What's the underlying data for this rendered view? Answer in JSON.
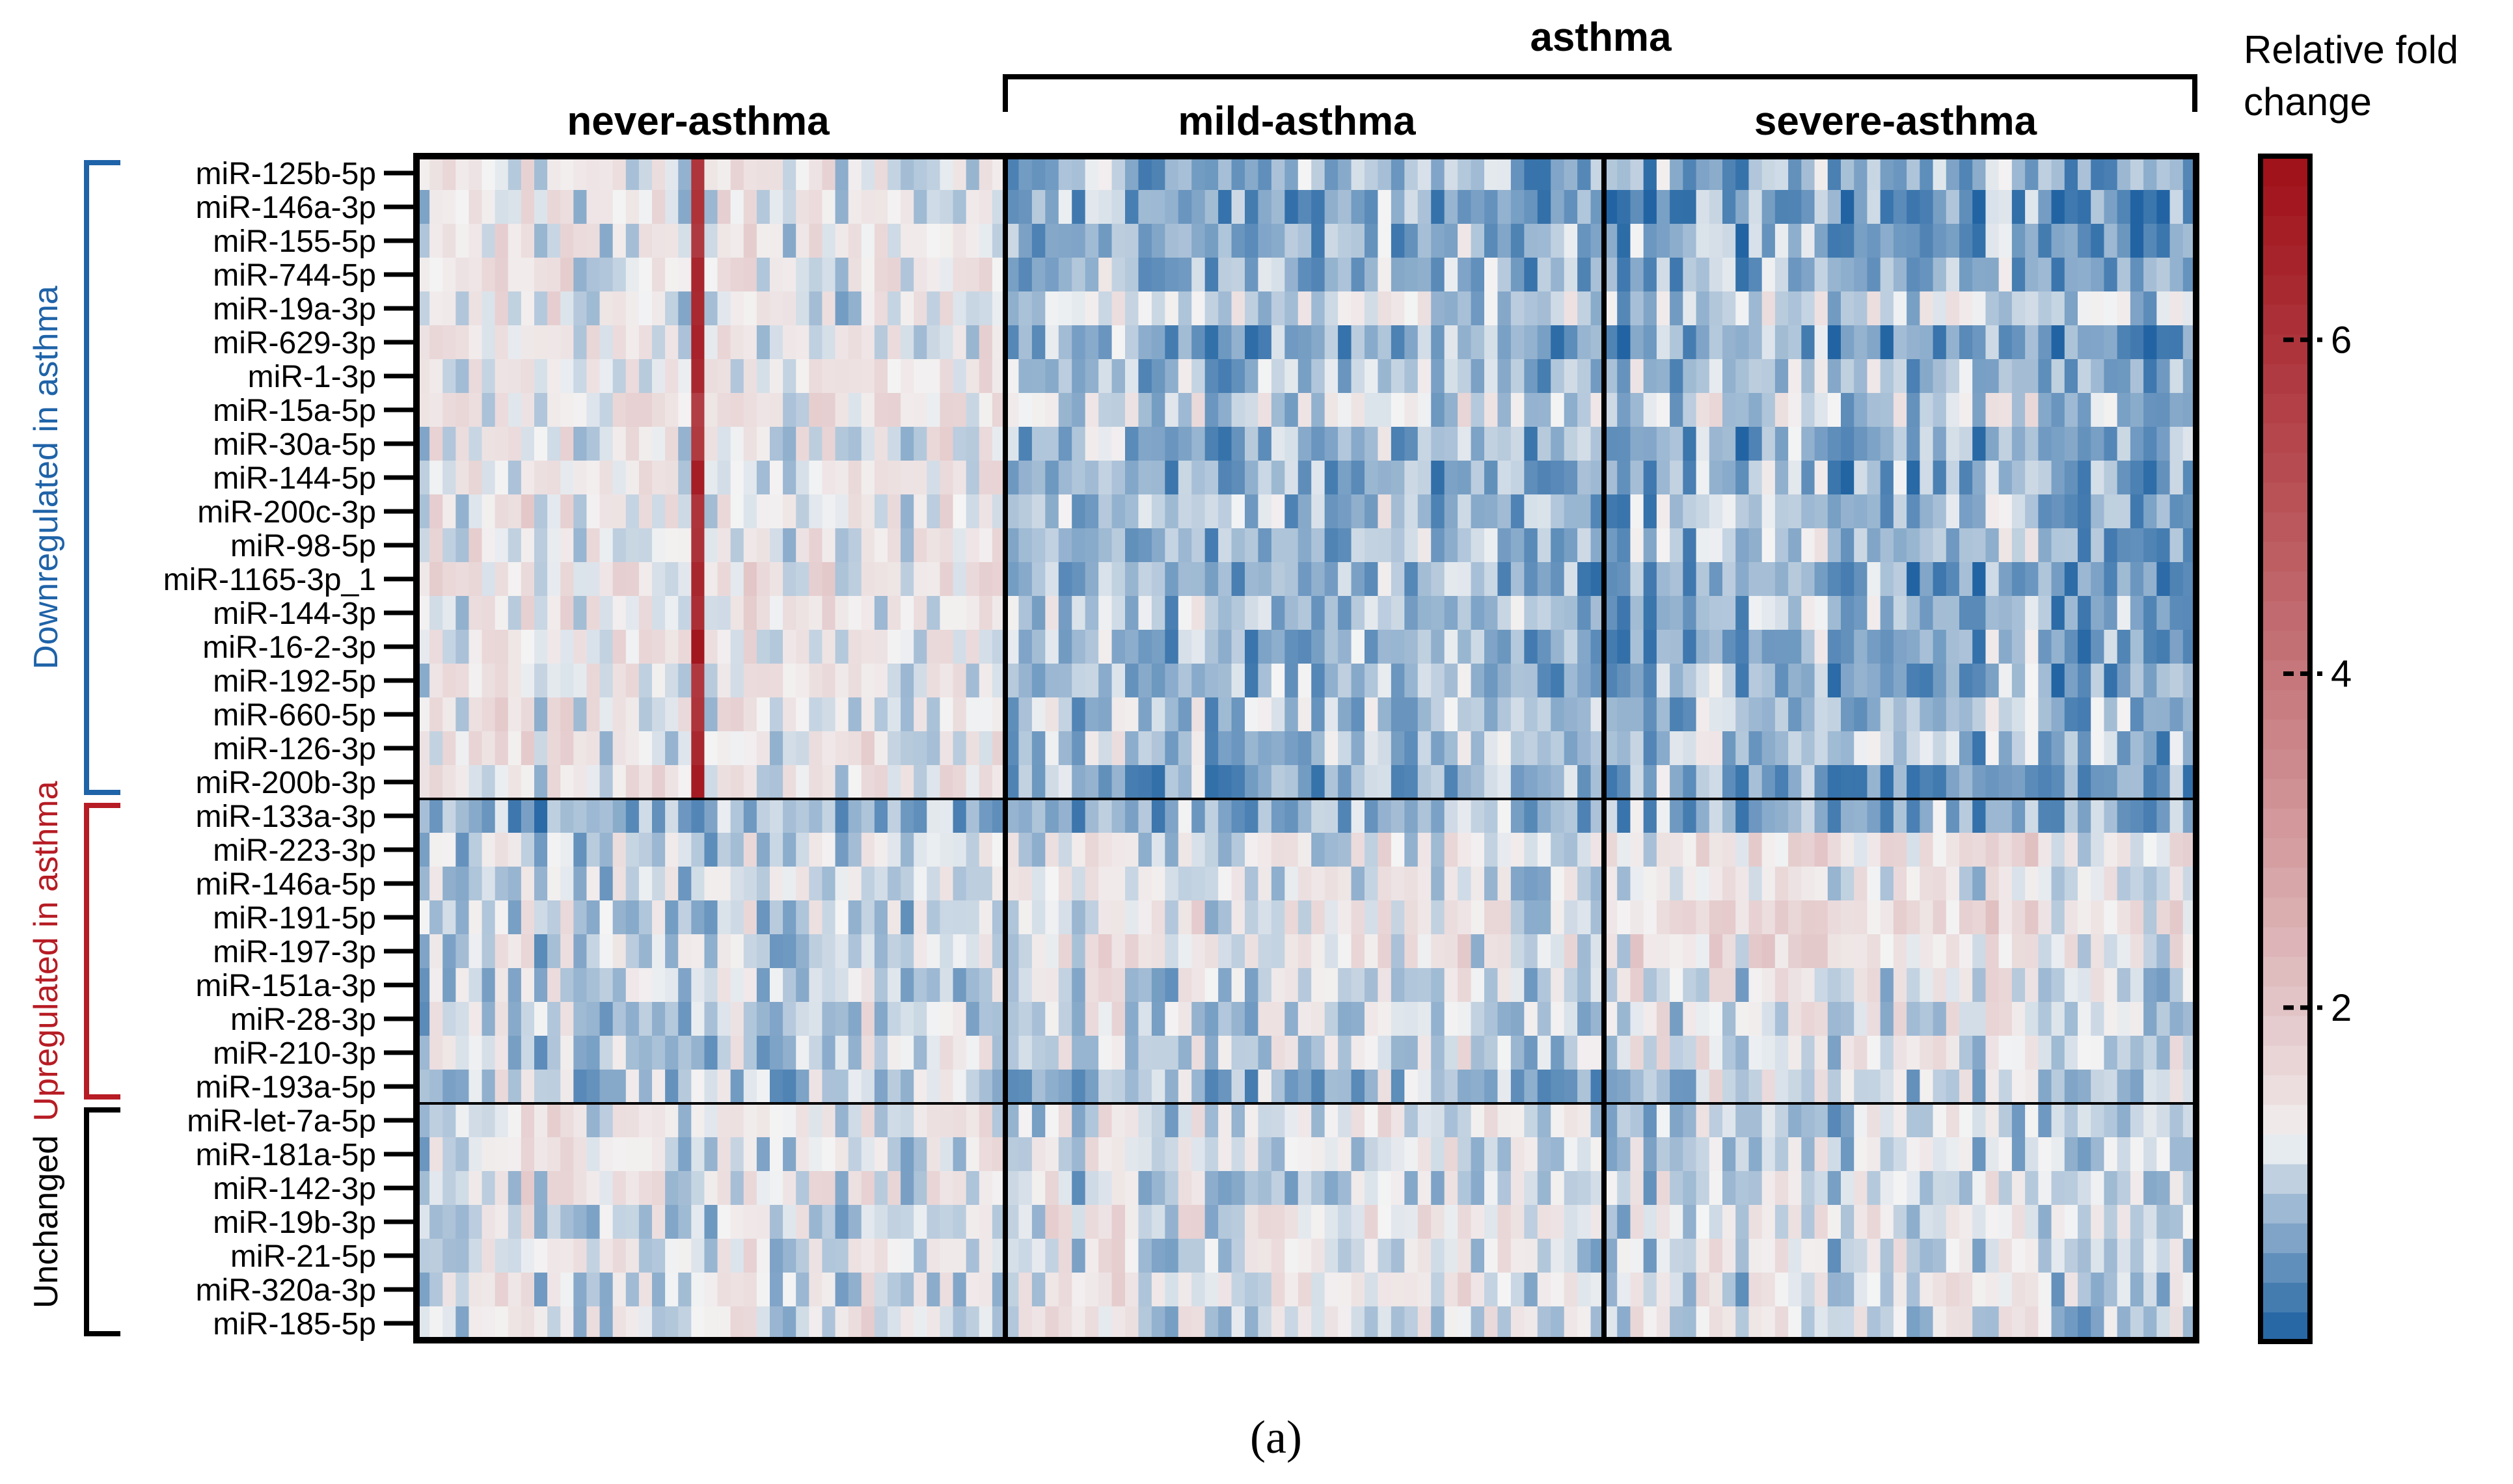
{
  "chart_data": {
    "type": "heatmap",
    "title": "",
    "caption": "(a)",
    "supergroup_label": "asthma",
    "groups": [
      {
        "name": "never-asthma",
        "columns": 45
      },
      {
        "name": "mild-asthma",
        "columns": 45
      },
      {
        "name": "severe-asthma",
        "columns": 45
      }
    ],
    "row_groups": [
      {
        "name": "Downregulated in asthma",
        "color": "#1f63a8",
        "rows": 19
      },
      {
        "name": "Upregulated in asthma",
        "color": "#b71c24",
        "rows": 9
      },
      {
        "name": "Unchanged",
        "color": "#000000",
        "rows": 7
      }
    ],
    "rows": [
      "miR-125b-5p",
      "miR-146a-3p",
      "miR-155-5p",
      "miR-744-5p",
      "miR-19a-3p",
      "miR-629-3p",
      "miR-1-3p",
      "miR-15a-5p",
      "miR-30a-5p",
      "miR-144-5p",
      "miR-200c-3p",
      "miR-98-5p",
      "miR-1165-3p_1",
      "miR-144-3p",
      "miR-16-2-3p",
      "miR-192-5p",
      "miR-660-5p",
      "miR-126-3p",
      "miR-200b-3p",
      "miR-133a-3p",
      "miR-223-3p",
      "miR-146a-5p",
      "miR-191-5p",
      "miR-197-3p",
      "miR-151a-3p",
      "miR-28-3p",
      "miR-210-3p",
      "miR-193a-5p",
      "miR-let-7a-5p",
      "miR-181a-5p",
      "miR-142-3p",
      "miR-19b-3p",
      "miR-21-5p",
      "miR-320a-3p",
      "miR-185-5p"
    ],
    "row_mean_fold_change": {
      "never-asthma": [
        1.3,
        1.25,
        1.25,
        1.3,
        1.2,
        1.3,
        1.3,
        1.4,
        1.3,
        1.3,
        1.3,
        1.3,
        1.4,
        1.3,
        1.35,
        1.3,
        1.3,
        1.25,
        1.35,
        0.75,
        1.0,
        1.05,
        1.05,
        1.05,
        1.05,
        1.05,
        1.05,
        0.95,
        1.25,
        1.2,
        1.25,
        1.1,
        1.2,
        1.1,
        1.2
      ],
      "mild-asthma": [
        0.8,
        0.7,
        0.75,
        0.8,
        1.05,
        0.65,
        0.85,
        1.1,
        0.8,
        0.75,
        0.85,
        0.85,
        0.7,
        0.9,
        0.8,
        0.8,
        0.9,
        0.9,
        0.7,
        0.8,
        1.2,
        1.15,
        1.3,
        1.3,
        1.1,
        1.05,
        1.1,
        0.85,
        1.15,
        1.15,
        1.1,
        1.25,
        1.15,
        1.25,
        1.15
      ],
      "severe-asthma": [
        0.7,
        0.6,
        0.6,
        0.75,
        1.0,
        0.55,
        0.8,
        1.0,
        0.7,
        0.7,
        0.75,
        0.8,
        0.6,
        0.8,
        0.75,
        0.7,
        0.85,
        0.85,
        0.6,
        0.75,
        1.5,
        1.3,
        1.5,
        1.45,
        1.2,
        1.1,
        1.2,
        1.05,
        1.0,
        1.0,
        1.05,
        1.15,
        1.1,
        1.1,
        1.05
      ]
    },
    "colorbar": {
      "label": "Relative fold change",
      "label_lines": [
        "Relative fold",
        "change"
      ],
      "min": 0,
      "max": 7.1,
      "ticks": [
        2,
        4,
        6
      ],
      "colors": [
        "#1a5fa0",
        "#f4f4f4",
        "#a01018"
      ],
      "midpoint": 1.2
    }
  }
}
